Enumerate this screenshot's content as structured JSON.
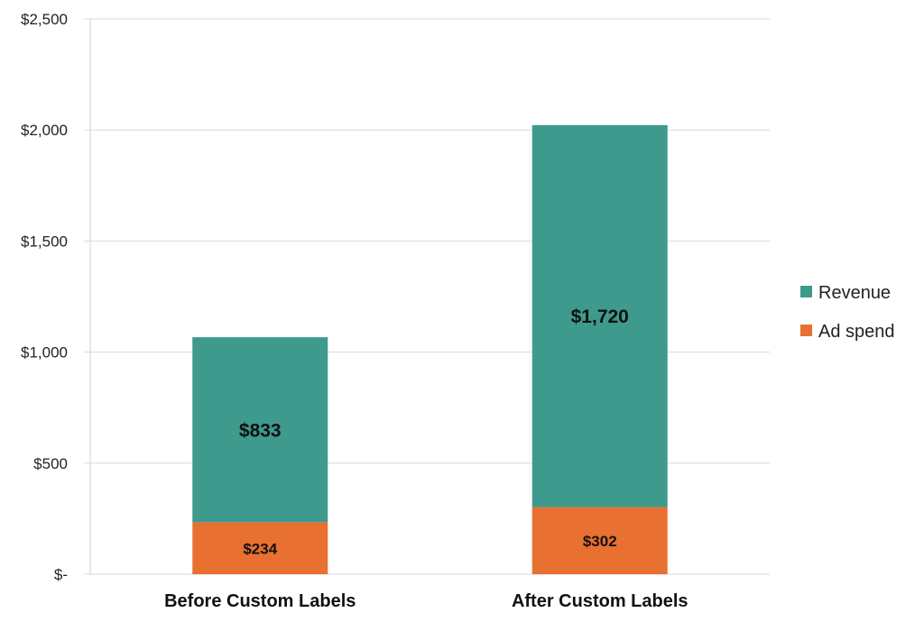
{
  "chart_data": {
    "type": "bar",
    "stacked": true,
    "categories": [
      "Before Custom Labels",
      "After Custom Labels"
    ],
    "series": [
      {
        "name": "Ad spend",
        "values": [
          234,
          302
        ],
        "labels": [
          "$234",
          "$302"
        ],
        "color": "#E87030"
      },
      {
        "name": "Revenue",
        "values": [
          833,
          1720
        ],
        "labels": [
          "$833",
          "$1,720"
        ],
        "color": "#3D9A8D"
      }
    ],
    "ylim": [
      0,
      2500
    ],
    "yticks": [
      0,
      500,
      1000,
      1500,
      2000,
      2500
    ],
    "ytick_labels": [
      "$-",
      "$500",
      "$1,000",
      "$1,500",
      "$2,000",
      "$2,500"
    ],
    "grid": true,
    "legend": {
      "placement": "right",
      "entries": [
        {
          "label": "Revenue",
          "color": "#3D9A8D"
        },
        {
          "label": "Ad spend",
          "color": "#E87030"
        }
      ]
    },
    "title": "",
    "xlabel": "",
    "ylabel": ""
  }
}
